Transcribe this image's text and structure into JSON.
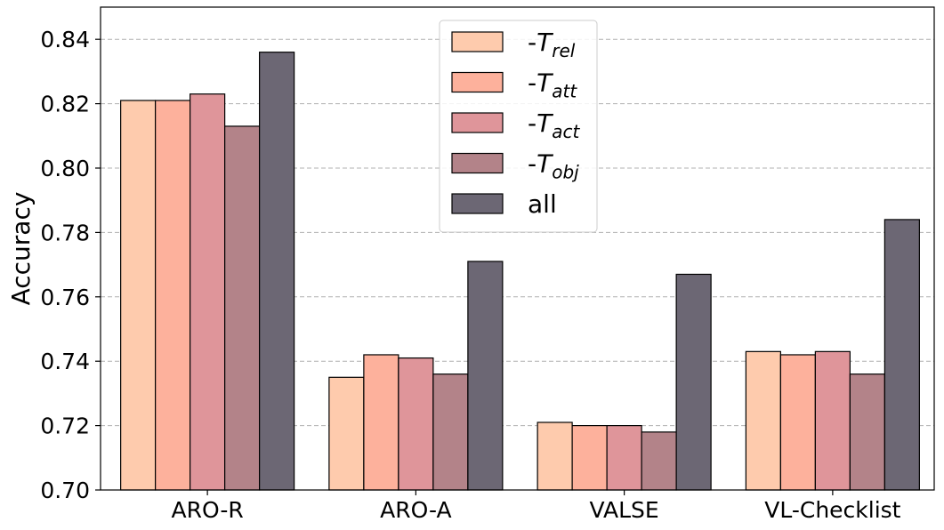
{
  "chart_data": {
    "type": "bar",
    "title": "",
    "xlabel": "",
    "ylabel": "Accuracy",
    "ylim": [
      0.7,
      0.85
    ],
    "yticks": [
      "0.70",
      "0.72",
      "0.74",
      "0.76",
      "0.78",
      "0.80",
      "0.82",
      "0.84"
    ],
    "grid": "horizontal dashed",
    "legend_position": "top-center",
    "categories": [
      "ARO-R",
      "ARO-A",
      "VALSE",
      "VL-Checklist"
    ],
    "series": [
      {
        "name": "-T_rel",
        "prefix": "-",
        "main": "T",
        "sub": "rel",
        "color": "#fecbad",
        "values": [
          0.821,
          0.735,
          0.721,
          0.743
        ]
      },
      {
        "name": "-T_att",
        "prefix": "-",
        "main": "T",
        "sub": "att",
        "color": "#fdb19c",
        "values": [
          0.821,
          0.742,
          0.72,
          0.742
        ]
      },
      {
        "name": "-T_act",
        "prefix": "-",
        "main": "T",
        "sub": "act",
        "color": "#df959a",
        "values": [
          0.823,
          0.741,
          0.72,
          0.743
        ]
      },
      {
        "name": "-T_obj",
        "prefix": "-",
        "main": "T",
        "sub": "obj",
        "color": "#b38389",
        "values": [
          0.813,
          0.736,
          0.718,
          0.736
        ]
      },
      {
        "name": "all",
        "prefix": "",
        "main": "all",
        "sub": "",
        "color": "#6c6774",
        "values": [
          0.836,
          0.771,
          0.767,
          0.784
        ]
      }
    ]
  }
}
